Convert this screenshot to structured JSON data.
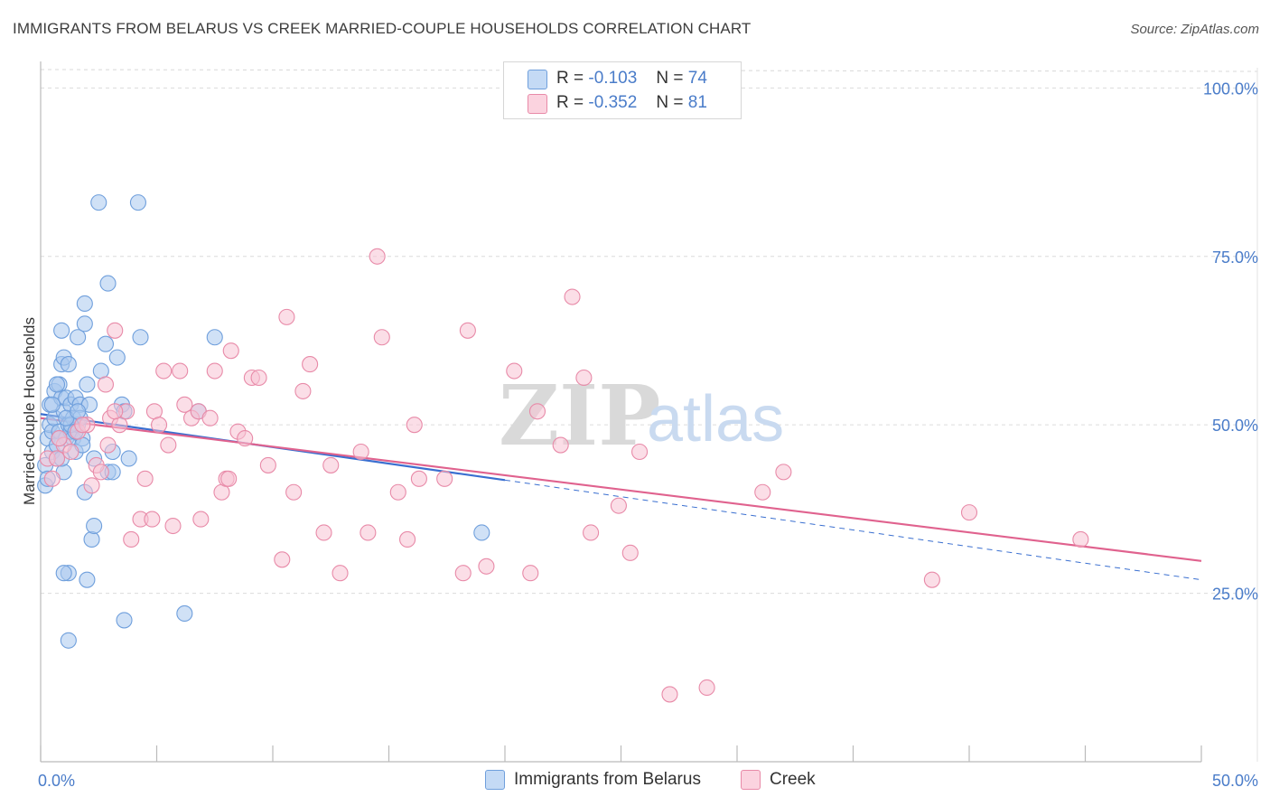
{
  "title": "IMMIGRANTS FROM BELARUS VS CREEK MARRIED-COUPLE HOUSEHOLDS CORRELATION CHART",
  "source": "Source: ZipAtlas.com",
  "watermark": {
    "zip": "ZIP",
    "atlas": "atlas"
  },
  "legend": {
    "r_label": "R =",
    "n_label": "N =",
    "rows": [
      {
        "r": "-0.103",
        "n": "74",
        "color": "#aac8ef",
        "border": "#6f9fdc"
      },
      {
        "r": "-0.352",
        "n": "81",
        "color": "#f7c3d3",
        "border": "#e88aa8"
      }
    ]
  },
  "chart_data": {
    "type": "scatter",
    "title": "IMMIGRANTS FROM BELARUS VS CREEK MARRIED-COUPLE HOUSEHOLDS CORRELATION CHART",
    "xlabel": "",
    "ylabel": "Married-couple Households",
    "xlim": [
      0,
      50
    ],
    "ylim": [
      0,
      103
    ],
    "x_tick_labels": [
      "0.0%",
      "50.0%"
    ],
    "y_ticks": [
      25,
      50,
      75,
      100
    ],
    "y_tick_labels": [
      "25.0%",
      "50.0%",
      "75.0%",
      "100.0%"
    ],
    "grid": true,
    "series": [
      {
        "name": "Immigrants from Belarus",
        "color": "#6f9fdc",
        "fill": "#aac8ef",
        "trend": {
          "x0": 0,
          "y0": 51.6,
          "x1": 20,
          "y1": 41.8,
          "dashed_to_x": 50,
          "dashed_to_y": 27.0,
          "color": "#3a6fd0"
        },
        "points": [
          [
            0.2,
            44
          ],
          [
            0.2,
            41
          ],
          [
            0.3,
            48
          ],
          [
            0.3,
            42
          ],
          [
            0.4,
            50
          ],
          [
            0.4,
            53
          ],
          [
            0.5,
            46
          ],
          [
            0.5,
            49
          ],
          [
            0.6,
            55
          ],
          [
            0.6,
            51
          ],
          [
            0.7,
            47
          ],
          [
            0.7,
            45
          ],
          [
            0.8,
            56
          ],
          [
            0.8,
            49
          ],
          [
            0.9,
            64
          ],
          [
            0.9,
            59
          ],
          [
            0.9,
            54
          ],
          [
            1.0,
            60
          ],
          [
            1.0,
            52
          ],
          [
            1.0,
            43
          ],
          [
            1.1,
            48
          ],
          [
            1.1,
            54
          ],
          [
            1.2,
            59
          ],
          [
            1.2,
            50
          ],
          [
            1.3,
            53
          ],
          [
            1.3,
            49
          ],
          [
            1.4,
            48
          ],
          [
            1.4,
            51
          ],
          [
            1.5,
            46
          ],
          [
            1.5,
            54
          ],
          [
            1.6,
            63
          ],
          [
            1.6,
            50
          ],
          [
            1.7,
            53
          ],
          [
            1.7,
            51
          ],
          [
            1.8,
            48
          ],
          [
            1.8,
            47
          ],
          [
            1.9,
            68
          ],
          [
            1.9,
            65
          ],
          [
            1.9,
            40
          ],
          [
            2.0,
            56
          ],
          [
            2.1,
            53
          ],
          [
            2.2,
            33
          ],
          [
            2.3,
            45
          ],
          [
            2.3,
            35
          ],
          [
            2.5,
            83
          ],
          [
            2.8,
            62
          ],
          [
            2.9,
            43
          ],
          [
            2.9,
            71
          ],
          [
            3.1,
            46
          ],
          [
            3.1,
            43
          ],
          [
            3.3,
            60
          ],
          [
            3.5,
            53
          ],
          [
            3.6,
            52
          ],
          [
            3.8,
            45
          ],
          [
            4.2,
            83
          ],
          [
            4.3,
            63
          ],
          [
            6.8,
            52
          ],
          [
            7.5,
            63
          ],
          [
            1.2,
            28
          ],
          [
            1.0,
            28
          ],
          [
            2.0,
            27
          ],
          [
            3.6,
            21
          ],
          [
            6.2,
            22
          ],
          [
            1.2,
            18
          ],
          [
            19.0,
            34
          ],
          [
            0.9,
            45
          ],
          [
            0.7,
            56
          ],
          [
            1.3,
            50
          ],
          [
            1.1,
            51
          ],
          [
            0.8,
            48
          ],
          [
            1.6,
            52
          ],
          [
            0.5,
            53
          ],
          [
            2.6,
            58
          ],
          [
            1.5,
            49
          ]
        ]
      },
      {
        "name": "Creek",
        "color": "#e88aa8",
        "fill": "#f7c3d3",
        "trend": {
          "x0": 0,
          "y0": 51.0,
          "x1": 50,
          "y1": 29.8,
          "color": "#e0628e"
        },
        "points": [
          [
            0.3,
            45
          ],
          [
            0.5,
            42
          ],
          [
            0.7,
            45
          ],
          [
            1.0,
            47
          ],
          [
            1.3,
            46
          ],
          [
            1.6,
            49
          ],
          [
            2.0,
            50
          ],
          [
            2.2,
            41
          ],
          [
            2.4,
            44
          ],
          [
            2.6,
            43
          ],
          [
            2.8,
            56
          ],
          [
            3.0,
            51
          ],
          [
            3.2,
            64
          ],
          [
            3.4,
            50
          ],
          [
            3.7,
            52
          ],
          [
            3.9,
            33
          ],
          [
            4.3,
            36
          ],
          [
            4.5,
            42
          ],
          [
            4.9,
            52
          ],
          [
            5.1,
            50
          ],
          [
            5.3,
            58
          ],
          [
            5.5,
            47
          ],
          [
            5.7,
            35
          ],
          [
            6.0,
            58
          ],
          [
            6.2,
            53
          ],
          [
            6.5,
            51
          ],
          [
            6.8,
            52
          ],
          [
            6.9,
            36
          ],
          [
            7.3,
            51
          ],
          [
            7.5,
            58
          ],
          [
            7.8,
            40
          ],
          [
            8.0,
            42
          ],
          [
            8.2,
            61
          ],
          [
            8.5,
            49
          ],
          [
            8.8,
            48
          ],
          [
            9.1,
            57
          ],
          [
            9.4,
            57
          ],
          [
            9.8,
            44
          ],
          [
            10.4,
            30
          ],
          [
            10.6,
            66
          ],
          [
            10.9,
            40
          ],
          [
            11.3,
            55
          ],
          [
            11.6,
            59
          ],
          [
            12.2,
            34
          ],
          [
            12.5,
            44
          ],
          [
            12.9,
            28
          ],
          [
            13.8,
            46
          ],
          [
            14.1,
            34
          ],
          [
            14.5,
            75
          ],
          [
            14.7,
            63
          ],
          [
            15.4,
            40
          ],
          [
            15.8,
            33
          ],
          [
            16.1,
            50
          ],
          [
            16.3,
            42
          ],
          [
            17.4,
            42
          ],
          [
            18.2,
            28
          ],
          [
            18.4,
            64
          ],
          [
            19.2,
            29
          ],
          [
            20.4,
            58
          ],
          [
            21.1,
            28
          ],
          [
            21.4,
            52
          ],
          [
            22.4,
            47
          ],
          [
            22.9,
            69
          ],
          [
            23.4,
            57
          ],
          [
            23.7,
            34
          ],
          [
            24.9,
            38
          ],
          [
            25.4,
            31
          ],
          [
            25.8,
            46
          ],
          [
            27.1,
            10
          ],
          [
            28.7,
            11
          ],
          [
            31.1,
            40
          ],
          [
            32.0,
            43
          ],
          [
            38.4,
            27
          ],
          [
            40.0,
            37
          ],
          [
            44.8,
            33
          ],
          [
            3.2,
            52
          ],
          [
            2.9,
            47
          ],
          [
            1.8,
            50
          ],
          [
            4.8,
            36
          ],
          [
            8.1,
            42
          ],
          [
            0.8,
            48
          ]
        ]
      }
    ]
  },
  "bottom_legend": {
    "series1": "Immigrants from Belarus",
    "series2": "Creek"
  }
}
